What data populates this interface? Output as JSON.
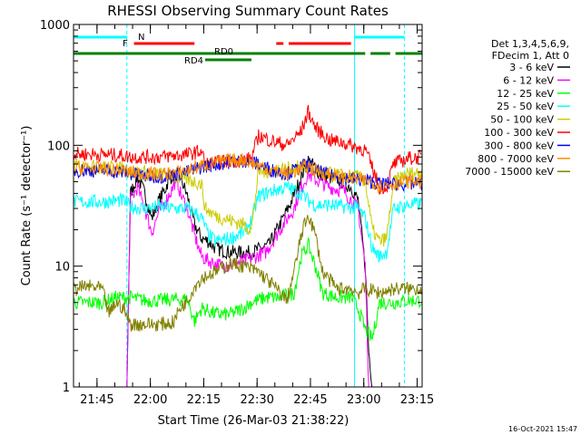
{
  "chart_data": {
    "type": "line",
    "title": "RHESSI Observing Summary Count Rates",
    "xlabel": "Start Time (26-Mar-03 21:38:22)",
    "ylabel": "Count Rate (s⁻¹ detector⁻¹)",
    "yscale": "log",
    "ylim": [
      1,
      1000
    ],
    "xlim_minutes": [
      0,
      98
    ],
    "x_tick_labels": [
      "21:45",
      "22:00",
      "22:15",
      "22:30",
      "22:45",
      "23:00",
      "23:15"
    ],
    "x_tick_minutes": [
      6.6,
      21.6,
      36.6,
      51.6,
      66.6,
      81.6,
      96.6
    ],
    "y_tick_labels": [
      "1",
      "10",
      "100",
      "1000"
    ],
    "y_tick_values": [
      1,
      10,
      100,
      1000
    ],
    "legend_header": [
      "Det 1,3,4,5,6,9,",
      "FDecim 1, Att 0"
    ],
    "legend_placement": "right",
    "timestamp": "16-Oct-2021 15:47",
    "flags": [
      {
        "label": "N",
        "color": "#00ffff",
        "segments": [
          [
            0,
            15
          ],
          [
            79,
            93
          ]
        ]
      },
      {
        "label": "F",
        "color": "#ff0000",
        "segments": [
          [
            17,
            34
          ],
          [
            57,
            59
          ],
          [
            60.5,
            78
          ]
        ]
      },
      {
        "label": "RD0",
        "color": "#008000",
        "segments": [
          [
            0,
            50
          ],
          [
            50,
            82
          ],
          [
            83.5,
            89
          ],
          [
            90.5,
            98
          ]
        ]
      },
      {
        "label": "RD4",
        "color": "#008000",
        "segments": [
          [
            37,
            50
          ]
        ]
      }
    ],
    "markers": [
      {
        "minute": 0,
        "style": "solid",
        "color": "#00ffff"
      },
      {
        "minute": 15,
        "style": "dashed",
        "color": "#00ffff"
      },
      {
        "minute": 79,
        "style": "solid",
        "color": "#00ffff"
      },
      {
        "minute": 93,
        "style": "dashed",
        "color": "#00ffff"
      }
    ],
    "series": [
      {
        "name": "3 - 6 keV",
        "color": "#000000",
        "points": [
          [
            0,
            1
          ],
          [
            15,
            1
          ],
          [
            16,
            40
          ],
          [
            18,
            55
          ],
          [
            20,
            40
          ],
          [
            22,
            25
          ],
          [
            24,
            35
          ],
          [
            26,
            45
          ],
          [
            27,
            55
          ],
          [
            30,
            55
          ],
          [
            32,
            38
          ],
          [
            34,
            22
          ],
          [
            36,
            17
          ],
          [
            38,
            16
          ],
          [
            40,
            14
          ],
          [
            44,
            13
          ],
          [
            50,
            13
          ],
          [
            55,
            15
          ],
          [
            58,
            22
          ],
          [
            61,
            33
          ],
          [
            64,
            55
          ],
          [
            66,
            75
          ],
          [
            68,
            65
          ],
          [
            70,
            55
          ],
          [
            74,
            53
          ],
          [
            78,
            45
          ],
          [
            80,
            35
          ],
          [
            82,
            10
          ],
          [
            83,
            2
          ],
          [
            84,
            1
          ],
          [
            98,
            1
          ]
        ]
      },
      {
        "name": "6 - 12 keV",
        "color": "#ff00ff",
        "points": [
          [
            0,
            1
          ],
          [
            15,
            1
          ],
          [
            16,
            35
          ],
          [
            18,
            45
          ],
          [
            20,
            30
          ],
          [
            22,
            19
          ],
          [
            24,
            28
          ],
          [
            26,
            35
          ],
          [
            28,
            45
          ],
          [
            29,
            55
          ],
          [
            30,
            40
          ],
          [
            32,
            30
          ],
          [
            34,
            18
          ],
          [
            36,
            12
          ],
          [
            38,
            11
          ],
          [
            42,
            10
          ],
          [
            48,
            11
          ],
          [
            54,
            13
          ],
          [
            58,
            20
          ],
          [
            62,
            30
          ],
          [
            64,
            45
          ],
          [
            66,
            58
          ],
          [
            68,
            52
          ],
          [
            72,
            45
          ],
          [
            76,
            42
          ],
          [
            80,
            30
          ],
          [
            82,
            10
          ],
          [
            83,
            1
          ],
          [
            98,
            1
          ]
        ]
      },
      {
        "name": "12 - 25 keV",
        "color": "#00ff00",
        "points": [
          [
            0,
            5
          ],
          [
            8,
            5
          ],
          [
            12,
            5.5
          ],
          [
            16,
            5.5
          ],
          [
            20,
            5.2
          ],
          [
            24,
            5.2
          ],
          [
            28,
            5.3
          ],
          [
            32,
            5.3
          ],
          [
            34,
            3.5
          ],
          [
            36,
            4.5
          ],
          [
            40,
            4
          ],
          [
            44,
            4
          ],
          [
            48,
            4.5
          ],
          [
            50,
            5
          ],
          [
            54,
            5.5
          ],
          [
            58,
            5.5
          ],
          [
            62,
            6
          ],
          [
            64,
            12
          ],
          [
            66,
            15
          ],
          [
            68,
            10
          ],
          [
            70,
            6
          ],
          [
            74,
            5.5
          ],
          [
            78,
            5.5
          ],
          [
            80,
            4.5
          ],
          [
            82,
            3
          ],
          [
            84,
            2.5
          ],
          [
            86,
            5
          ],
          [
            90,
            5
          ],
          [
            94,
            5.2
          ],
          [
            98,
            5.2
          ]
        ]
      },
      {
        "name": "25 - 50 keV",
        "color": "#00ffff",
        "points": [
          [
            0,
            34
          ],
          [
            8,
            34
          ],
          [
            14,
            35
          ],
          [
            16,
            31
          ],
          [
            20,
            30
          ],
          [
            24,
            31
          ],
          [
            28,
            30
          ],
          [
            32,
            30
          ],
          [
            34,
            28
          ],
          [
            36,
            25
          ],
          [
            38,
            18
          ],
          [
            40,
            16
          ],
          [
            44,
            17
          ],
          [
            48,
            19
          ],
          [
            50,
            24
          ],
          [
            52,
            38
          ],
          [
            56,
            42
          ],
          [
            60,
            45
          ],
          [
            64,
            40
          ],
          [
            66,
            35
          ],
          [
            68,
            32
          ],
          [
            72,
            32
          ],
          [
            76,
            31
          ],
          [
            80,
            30
          ],
          [
            82,
            25
          ],
          [
            84,
            14
          ],
          [
            86,
            12
          ],
          [
            88,
            13
          ],
          [
            90,
            30
          ],
          [
            94,
            32
          ],
          [
            98,
            33
          ]
        ]
      },
      {
        "name": "50 - 100 keV",
        "color": "#cccc00",
        "points": [
          [
            0,
            68
          ],
          [
            8,
            66
          ],
          [
            14,
            64
          ],
          [
            16,
            60
          ],
          [
            20,
            60
          ],
          [
            24,
            58
          ],
          [
            28,
            55
          ],
          [
            32,
            52
          ],
          [
            34,
            50
          ],
          [
            36,
            48
          ],
          [
            37,
            30
          ],
          [
            40,
            26
          ],
          [
            44,
            24
          ],
          [
            48,
            22
          ],
          [
            50,
            20
          ],
          [
            52,
            60
          ],
          [
            56,
            62
          ],
          [
            60,
            64
          ],
          [
            64,
            66
          ],
          [
            68,
            62
          ],
          [
            72,
            58
          ],
          [
            76,
            56
          ],
          [
            80,
            55
          ],
          [
            82,
            50
          ],
          [
            84,
            20
          ],
          [
            86,
            16
          ],
          [
            88,
            17
          ],
          [
            90,
            50
          ],
          [
            94,
            58
          ],
          [
            98,
            60
          ]
        ]
      },
      {
        "name": "100 - 300 keV",
        "color": "#ff0000",
        "points": [
          [
            0,
            85
          ],
          [
            8,
            84
          ],
          [
            14,
            82
          ],
          [
            16,
            80
          ],
          [
            20,
            80
          ],
          [
            24,
            80
          ],
          [
            28,
            82
          ],
          [
            32,
            84
          ],
          [
            36,
            90
          ],
          [
            37,
            70
          ],
          [
            40,
            72
          ],
          [
            44,
            74
          ],
          [
            48,
            76
          ],
          [
            50,
            78
          ],
          [
            52,
            120
          ],
          [
            56,
            108
          ],
          [
            60,
            100
          ],
          [
            64,
            130
          ],
          [
            66,
            190
          ],
          [
            68,
            140
          ],
          [
            72,
            110
          ],
          [
            76,
            105
          ],
          [
            80,
            95
          ],
          [
            82,
            92
          ],
          [
            84,
            65
          ],
          [
            86,
            45
          ],
          [
            88,
            45
          ],
          [
            90,
            70
          ],
          [
            94,
            78
          ],
          [
            98,
            80
          ]
        ]
      },
      {
        "name": "300 - 800 keV",
        "color": "#0000ff",
        "points": [
          [
            0,
            62
          ],
          [
            8,
            62
          ],
          [
            14,
            60
          ],
          [
            16,
            58
          ],
          [
            20,
            56
          ],
          [
            24,
            55
          ],
          [
            28,
            57
          ],
          [
            32,
            60
          ],
          [
            36,
            66
          ],
          [
            40,
            70
          ],
          [
            44,
            73
          ],
          [
            48,
            75
          ],
          [
            52,
            70
          ],
          [
            56,
            62
          ],
          [
            60,
            58
          ],
          [
            64,
            66
          ],
          [
            66,
            70
          ],
          [
            68,
            62
          ],
          [
            72,
            56
          ],
          [
            76,
            54
          ],
          [
            80,
            52
          ],
          [
            84,
            50
          ],
          [
            86,
            48
          ],
          [
            90,
            48
          ],
          [
            94,
            48
          ],
          [
            98,
            48
          ]
        ]
      },
      {
        "name": "800 - 7000 keV",
        "color": "#ff8c00",
        "points": [
          [
            0,
            65
          ],
          [
            8,
            64
          ],
          [
            14,
            62
          ],
          [
            16,
            60
          ],
          [
            20,
            58
          ],
          [
            24,
            57
          ],
          [
            28,
            59
          ],
          [
            32,
            62
          ],
          [
            36,
            68
          ],
          [
            40,
            72
          ],
          [
            44,
            75
          ],
          [
            48,
            76
          ],
          [
            52,
            68
          ],
          [
            56,
            62
          ],
          [
            60,
            58
          ],
          [
            64,
            64
          ],
          [
            66,
            68
          ],
          [
            68,
            62
          ],
          [
            72,
            57
          ],
          [
            76,
            54
          ],
          [
            80,
            52
          ],
          [
            84,
            50
          ],
          [
            86,
            46
          ],
          [
            90,
            48
          ],
          [
            94,
            50
          ],
          [
            98,
            50
          ]
        ]
      },
      {
        "name": "7000 - 15000 keV",
        "color": "#808000",
        "points": [
          [
            0,
            6.5
          ],
          [
            4,
            6.8
          ],
          [
            8,
            6.5
          ],
          [
            10,
            4
          ],
          [
            12,
            5
          ],
          [
            14,
            4.5
          ],
          [
            16,
            3.3
          ],
          [
            20,
            3.3
          ],
          [
            24,
            3.3
          ],
          [
            28,
            3.4
          ],
          [
            30,
            4.5
          ],
          [
            32,
            5.2
          ],
          [
            34,
            6.8
          ],
          [
            36,
            8
          ],
          [
            40,
            9
          ],
          [
            44,
            10.5
          ],
          [
            48,
            10
          ],
          [
            52,
            9
          ],
          [
            56,
            7
          ],
          [
            60,
            5.2
          ],
          [
            62,
            9
          ],
          [
            64,
            18
          ],
          [
            66,
            27
          ],
          [
            68,
            18
          ],
          [
            70,
            9
          ],
          [
            74,
            6.5
          ],
          [
            78,
            6.5
          ],
          [
            80,
            6
          ],
          [
            82,
            6.5
          ],
          [
            86,
            6
          ],
          [
            90,
            6.5
          ],
          [
            94,
            6.5
          ],
          [
            98,
            6.5
          ]
        ]
      }
    ]
  }
}
